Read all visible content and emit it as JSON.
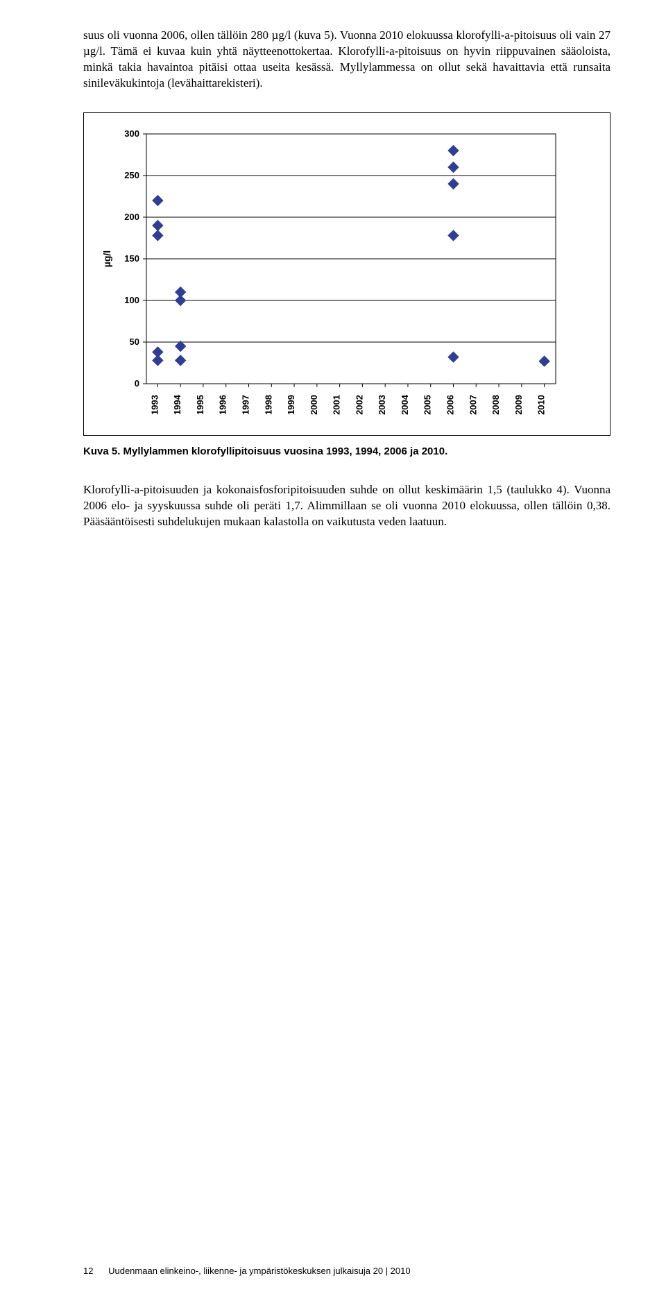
{
  "paragraph1": "suus oli vuonna 2006, ollen tällöin 280 µg/l (kuva 5). Vuonna 2010 elokuussa klorofylli-a-pitoisuus oli vain 27 µg/l.  Tämä ei kuvaa kuin yhtä näytteenottokertaa. Klorofylli-a-pitoisuus on hyvin riippuvainen sääoloista, minkä takia havaintoa pitäisi ottaa useita kesässä. Myllylammessa on ollut sekä havaittavia että runsaita sinileväkukintoja (levähaittarekisteri).",
  "paragraph2": "Klorofylli-a-pitoisuuden ja kokonaisfosforipitoisuuden suhde on ollut keskimäärin 1,5 (taulukko 4). Vuonna 2006 elo- ja syyskuussa suhde oli peräti 1,7. Alimmillaan se oli vuonna 2010 elokuussa, ollen tällöin 0,38. Pääsääntöisesti suhdelukujen mukaan kalastolla on vaikutusta veden laatuun.",
  "caption": "Kuva 5. Myllylammen klorofyllipitoisuus vuosina 1993, 1994, 2006 ja 2010.",
  "footer_page": "12",
  "footer_text": "Uudenmaan elinkeino-, liikenne- ja ympäristökeskuksen julkaisuja 20 | 2010",
  "chart": {
    "type": "scatter",
    "ylabel": "µg/l",
    "ylim": [
      0,
      300
    ],
    "ytick_step": 50,
    "x_categories": [
      "1993",
      "1994",
      "1995",
      "1996",
      "1997",
      "1998",
      "1999",
      "2000",
      "2001",
      "2002",
      "2003",
      "2004",
      "2005",
      "2006",
      "2007",
      "2008",
      "2009",
      "2010"
    ],
    "points": [
      {
        "x": "1993",
        "y": 220
      },
      {
        "x": "1993",
        "y": 190
      },
      {
        "x": "1993",
        "y": 178
      },
      {
        "x": "1993",
        "y": 38
      },
      {
        "x": "1993",
        "y": 28
      },
      {
        "x": "1994",
        "y": 110
      },
      {
        "x": "1994",
        "y": 100
      },
      {
        "x": "1994",
        "y": 45
      },
      {
        "x": "1994",
        "y": 28
      },
      {
        "x": "2006",
        "y": 280
      },
      {
        "x": "2006",
        "y": 260
      },
      {
        "x": "2006",
        "y": 240
      },
      {
        "x": "2006",
        "y": 178
      },
      {
        "x": "2006",
        "y": 32
      },
      {
        "x": "2010",
        "y": 27
      }
    ],
    "marker_color": "#2f3e8f",
    "marker_size": 9,
    "grid_color": "#000000",
    "background_color": "#ffffff",
    "axis_fontsize": 14,
    "tick_fontsize": 13,
    "tick_fontfamily": "Arial, Helvetica, sans-serif"
  }
}
